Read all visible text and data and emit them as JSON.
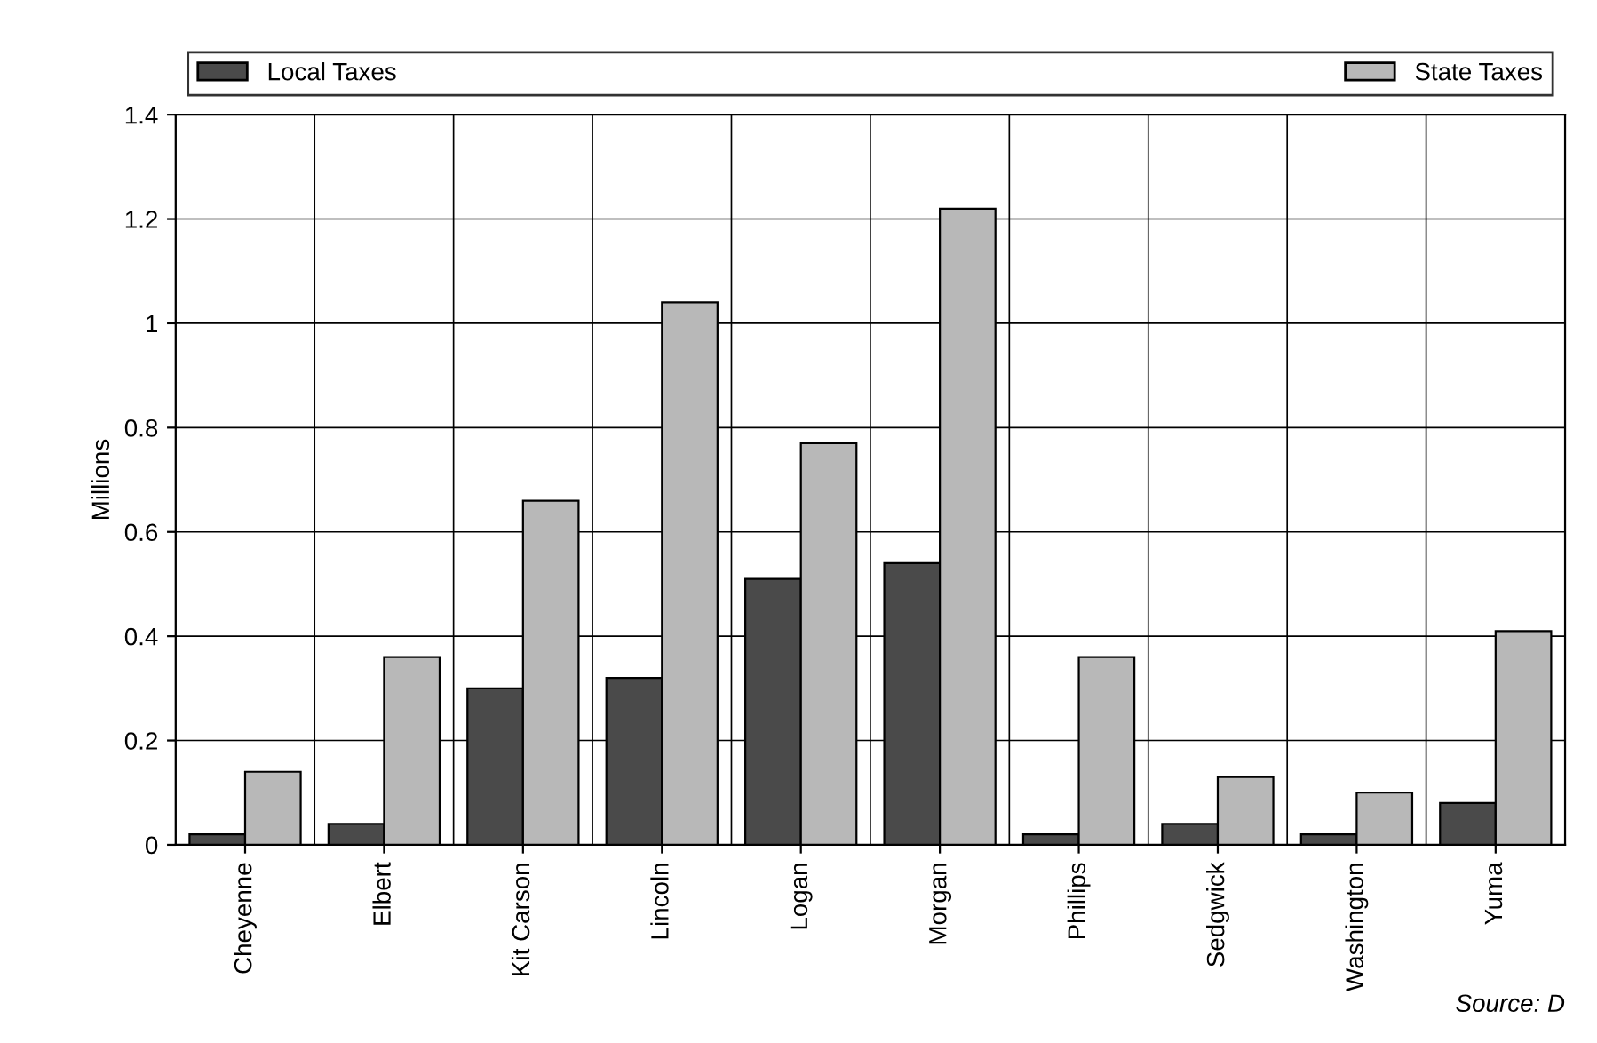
{
  "chart_data": {
    "type": "bar",
    "ylabel": "Millions",
    "categories": [
      "Cheyenne",
      "Elbert",
      "Kit Carson",
      "Lincoln",
      "Logan",
      "Morgan",
      "Phillips",
      "Sedgwick",
      "Washington",
      "Yuma"
    ],
    "series": [
      {
        "name": "Local Taxes",
        "color": "#4a4a4a",
        "values": [
          0.02,
          0.04,
          0.3,
          0.32,
          0.51,
          0.54,
          0.02,
          0.04,
          0.02,
          0.08
        ]
      },
      {
        "name": "State Taxes",
        "color": "#b8b8b8",
        "values": [
          0.14,
          0.36,
          0.66,
          1.04,
          0.77,
          1.22,
          0.36,
          0.13,
          0.1,
          0.41
        ]
      }
    ],
    "ylim": [
      0,
      1.4
    ],
    "yticks": [
      0,
      0.2,
      0.4,
      0.6,
      0.8,
      1,
      1.2,
      1.4
    ],
    "grid": true,
    "legend": "top",
    "annotations": [
      "Source: D"
    ]
  }
}
